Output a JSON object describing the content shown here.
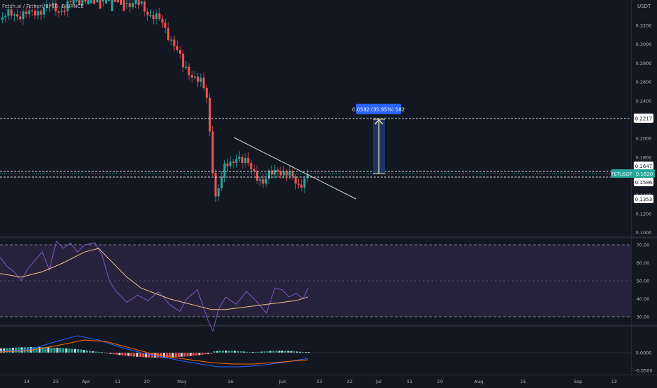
{
  "symbol_title": "Fetch.ai / TetherUS, 1D, BINANCE",
  "currency": "USDT",
  "price_axis": {
    "ticks": [
      "0.3200",
      "0.3000",
      "0.2800",
      "0.2600",
      "0.2400",
      "0.2000",
      "0.1800",
      "0.1400",
      "0.1200",
      "0.1000"
    ],
    "tick_values": [
      0.32,
      0.3,
      0.28,
      0.26,
      0.24,
      0.2,
      0.18,
      0.14,
      0.12,
      0.1
    ]
  },
  "price_labels": {
    "target": "0.2217",
    "level_high": "0.1647",
    "symbol_tag": "FETUSDT",
    "current": "0.1620",
    "level_low": "0.1586",
    "low": "0.1353"
  },
  "measure_label": "0.0582 (35.95%) 582",
  "rsi_axis": {
    "ticks": [
      "70.00",
      "60.00",
      "50.00",
      "40.00",
      "30.00"
    ],
    "tick_values": [
      70,
      60,
      50,
      40,
      30
    ]
  },
  "macd_axis": {
    "ticks": [
      "0.0000",
      "-0.0500"
    ],
    "tick_values": [
      0.0,
      -0.05
    ]
  },
  "time_axis": [
    "14",
    "23",
    "Apr",
    "11",
    "20",
    "May",
    "16",
    "Jun",
    "13",
    "22",
    "Jul",
    "11",
    "20",
    "Aug",
    "15",
    "Sep",
    "12"
  ],
  "colors": {
    "background": "#131722",
    "up": "#26a69a",
    "down": "#ef5350",
    "current_tag": "#26a69a",
    "measure_label_bg": "#2962ff",
    "measure_fill": "#1e3a6e",
    "measure_arrow": "#e6e3a0",
    "rsi_band": "#2a2441",
    "rsi_line": "#7e57c2",
    "rsi_ma": "#f0c08a",
    "macd_line": "#2962ff",
    "macd_signal": "#ff6d00"
  },
  "icons": []
}
